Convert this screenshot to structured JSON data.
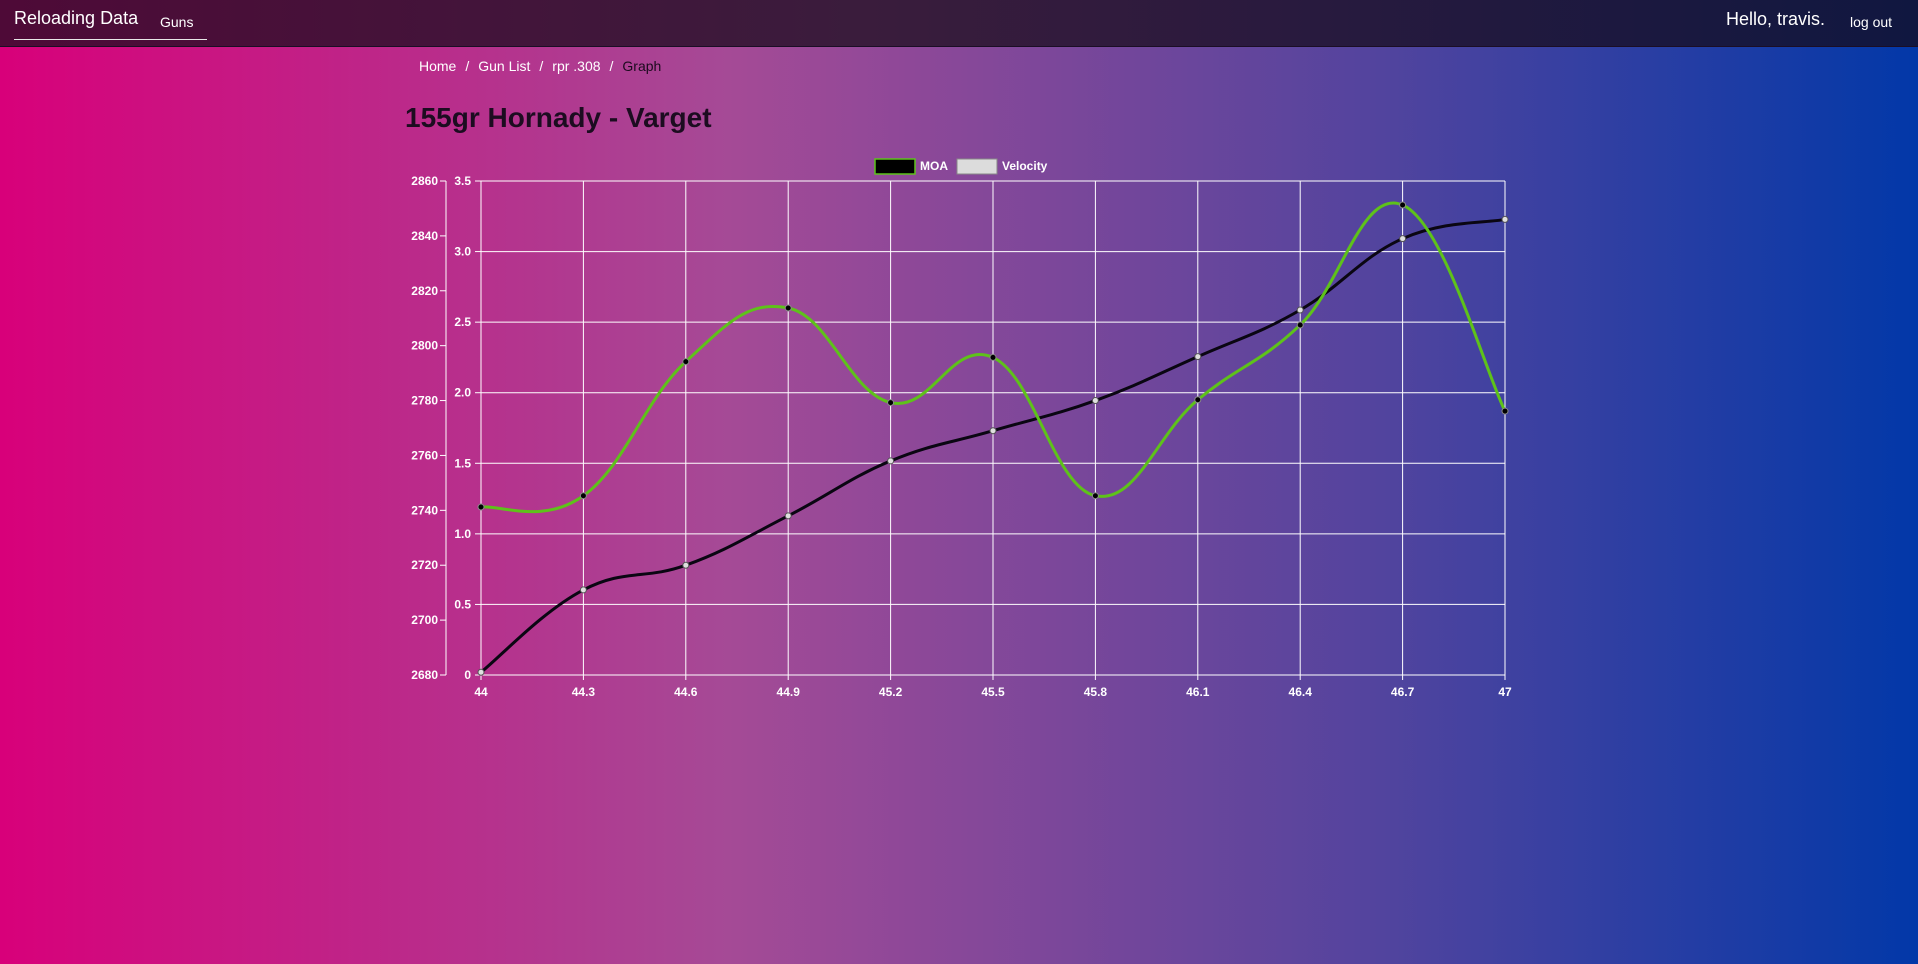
{
  "nav": {
    "brand": "Reloading Data",
    "guns_label": "Guns",
    "greeting": "Hello, travis.",
    "logout_label": "log out"
  },
  "breadcrumb": {
    "items": [
      "Home",
      "Gun List",
      "rpr .308"
    ],
    "current": "Graph"
  },
  "page": {
    "title": "155gr Hornady - Varget"
  },
  "colors": {
    "moa_line": "#5ec21a",
    "moa_point": "#000000",
    "velocity_line": "#0a0612",
    "velocity_point": "#e0e0e0",
    "grid": "#ffffff"
  },
  "chart_data": {
    "type": "line",
    "x": [
      44,
      44.3,
      44.6,
      44.9,
      45.2,
      45.5,
      45.8,
      46.1,
      46.4,
      46.7,
      47
    ],
    "x_tick_labels": [
      "44",
      "44.3",
      "44.6",
      "44.9",
      "45.2",
      "45.5",
      "45.8",
      "46.1",
      "46.4",
      "46.7",
      "47"
    ],
    "series": [
      {
        "name": "MOA",
        "axis": "right",
        "values": [
          1.19,
          1.27,
          2.22,
          2.6,
          1.93,
          2.25,
          1.27,
          1.95,
          2.48,
          3.33,
          1.87
        ]
      },
      {
        "name": "Velocity",
        "axis": "left",
        "values": [
          2681,
          2711,
          2720,
          2738,
          2758,
          2769,
          2780,
          2796,
          2813,
          2839,
          2846
        ]
      }
    ],
    "y_left": {
      "min": 2680,
      "max": 2860,
      "ticks": [
        "2680",
        "2700",
        "2720",
        "2740",
        "2760",
        "2780",
        "2800",
        "2820",
        "2840",
        "2860"
      ]
    },
    "y_right": {
      "min": 0,
      "max": 3.5,
      "ticks": [
        "0",
        "0.5",
        "1.0",
        "1.5",
        "2.0",
        "2.5",
        "3.0",
        "3.5"
      ]
    },
    "legend": {
      "position": "top-center",
      "entries": [
        "MOA",
        "Velocity"
      ]
    },
    "grid": true
  }
}
